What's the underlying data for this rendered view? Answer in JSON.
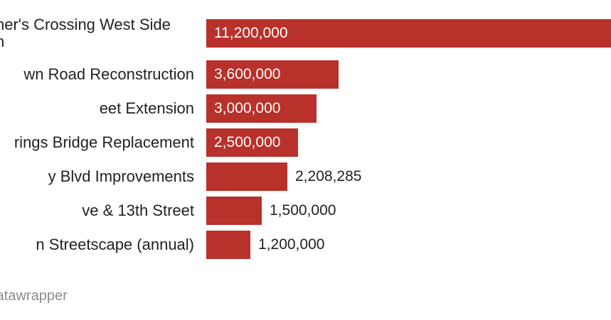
{
  "chart_data": {
    "type": "bar",
    "orientation": "horizontal",
    "categories": [
      "ner's Crossing West Side\nn",
      "wn Road Reconstruction",
      "eet Extension",
      "rings Bridge Replacement",
      "y Blvd Improvements",
      "ve & 13th Street",
      "n Streetscape (annual)"
    ],
    "values": [
      11200000,
      3600000,
      3000000,
      2500000,
      2208285,
      1500000,
      1200000
    ],
    "value_labels": [
      "11,200,000",
      "3,600,000",
      "3,000,000",
      "2,500,000",
      "2,208,285",
      "1,500,000",
      "1,200,000"
    ],
    "xlim": [
      0,
      11200000
    ],
    "grid": false,
    "legend": "none",
    "bar_color": "#b8312a"
  },
  "footer": {
    "credit": "th Datawrapper"
  }
}
